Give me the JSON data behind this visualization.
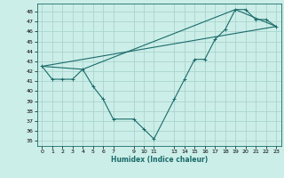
{
  "title": "",
  "xlabel": "Humidex (Indice chaleur)",
  "bg_color": "#cceee8",
  "grid_color": "#aad4ce",
  "line_color": "#1a6b6b",
  "xlim": [
    -0.5,
    23.5
  ],
  "ylim": [
    34.5,
    48.8
  ],
  "xticks": [
    0,
    1,
    2,
    3,
    4,
    5,
    6,
    7,
    9,
    10,
    11,
    13,
    14,
    15,
    16,
    17,
    18,
    19,
    20,
    21,
    22,
    23
  ],
  "yticks": [
    35,
    36,
    37,
    38,
    39,
    40,
    41,
    42,
    43,
    44,
    45,
    46,
    47,
    48
  ],
  "line1_x": [
    0,
    1,
    2,
    3,
    4,
    5,
    6,
    7,
    9,
    10,
    11,
    13,
    14,
    15,
    16,
    17,
    18,
    19,
    20,
    21,
    22,
    23
  ],
  "line1_y": [
    42.5,
    41.2,
    41.2,
    41.2,
    42.2,
    40.5,
    39.2,
    37.2,
    37.2,
    36.2,
    35.2,
    39.2,
    41.2,
    43.2,
    43.2,
    45.2,
    46.2,
    48.2,
    48.2,
    47.2,
    47.2,
    46.5
  ],
  "line2_x": [
    0,
    4,
    19,
    23
  ],
  "line2_y": [
    42.5,
    42.2,
    48.2,
    46.5
  ],
  "line3_x": [
    0,
    23
  ],
  "line3_y": [
    42.5,
    46.5
  ],
  "xlabel_fontsize": 5.5,
  "tick_fontsize": 4.5
}
